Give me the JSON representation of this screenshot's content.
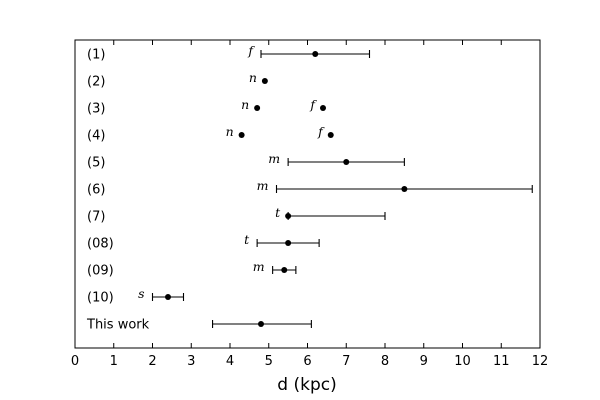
{
  "chart_data": {
    "type": "scatter",
    "xlabel": "d (kpc)",
    "xlim": [
      0,
      12
    ],
    "xticks": [
      0,
      1,
      2,
      3,
      4,
      5,
      6,
      7,
      8,
      9,
      10,
      11,
      12
    ],
    "grid": false,
    "rows": [
      {
        "label": "(1)",
        "points": [
          {
            "x": 6.2,
            "lo": 4.8,
            "hi": 7.6,
            "tag": "f"
          }
        ]
      },
      {
        "label": "(2)",
        "points": [
          {
            "x": 4.9,
            "tag": "n"
          }
        ]
      },
      {
        "label": "(3)",
        "points": [
          {
            "x": 4.7,
            "tag": "n"
          },
          {
            "x": 6.4,
            "tag": "f"
          }
        ]
      },
      {
        "label": "(4)",
        "points": [
          {
            "x": 4.3,
            "tag": "n"
          },
          {
            "x": 6.6,
            "tag": "f"
          }
        ]
      },
      {
        "label": "(5)",
        "points": [
          {
            "x": 7.0,
            "lo": 5.5,
            "hi": 8.5,
            "tag": "m"
          }
        ]
      },
      {
        "label": "(6)",
        "points": [
          {
            "x": 8.5,
            "lo": 5.2,
            "hi": 11.8,
            "tag": "m"
          }
        ]
      },
      {
        "label": "(7)",
        "points": [
          {
            "x": 5.5,
            "lo": 5.5,
            "hi": 8.0,
            "tag": "t"
          }
        ]
      },
      {
        "label": "(08)",
        "points": [
          {
            "x": 5.5,
            "lo": 4.7,
            "hi": 6.3,
            "tag": "t"
          }
        ]
      },
      {
        "label": "(09)",
        "points": [
          {
            "x": 5.4,
            "lo": 5.1,
            "hi": 5.7,
            "tag": "m"
          }
        ]
      },
      {
        "label": "(10)",
        "points": [
          {
            "x": 2.4,
            "lo": 2.0,
            "hi": 2.8,
            "tag": "s"
          }
        ]
      },
      {
        "label": "This work",
        "points": [
          {
            "x": 4.8,
            "lo": 3.55,
            "hi": 6.1
          }
        ]
      }
    ]
  }
}
